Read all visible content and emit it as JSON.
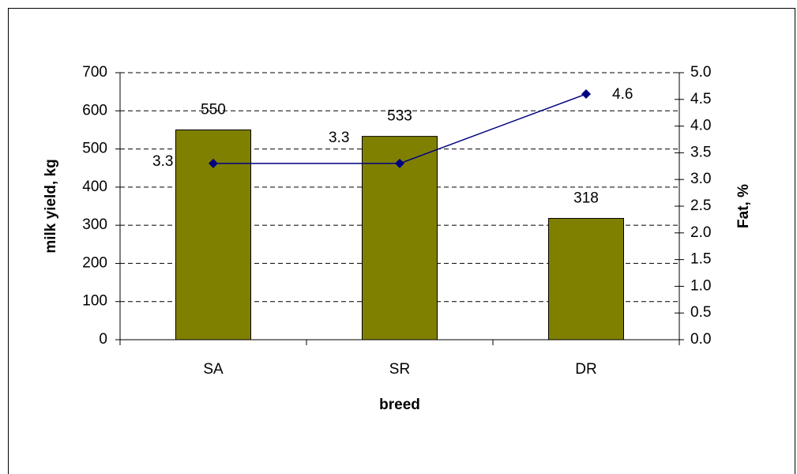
{
  "chart_data": {
    "type": "bar",
    "categories": [
      "SA",
      "SR",
      "DR"
    ],
    "xlabel": "breed",
    "ylabel": "milk yield, kg",
    "y2label": "Fat, %",
    "series": [
      {
        "type": "bar",
        "color": "#808000",
        "values": [
          550,
          533,
          318
        ]
      },
      {
        "type": "line",
        "color": "#000080",
        "axis": "y2",
        "values": [
          3.3,
          3.3,
          4.6
        ]
      }
    ],
    "ylim": [
      0,
      700
    ],
    "yticks": [
      0,
      100,
      200,
      300,
      400,
      500,
      600,
      700
    ],
    "y2lim": [
      0,
      5
    ],
    "y2ticks": [
      {
        "value": 0,
        "label": "0.0"
      },
      0.5,
      {
        "value": 1,
        "label": "1.0"
      },
      1.5,
      {
        "value": 2,
        "label": "2.0"
      },
      2.5,
      {
        "value": 3,
        "label": "3.0"
      },
      3.5,
      {
        "value": 4,
        "label": "4.0"
      },
      4.5,
      {
        "value": 5,
        "label": "5.0"
      }
    ],
    "grid": true
  }
}
